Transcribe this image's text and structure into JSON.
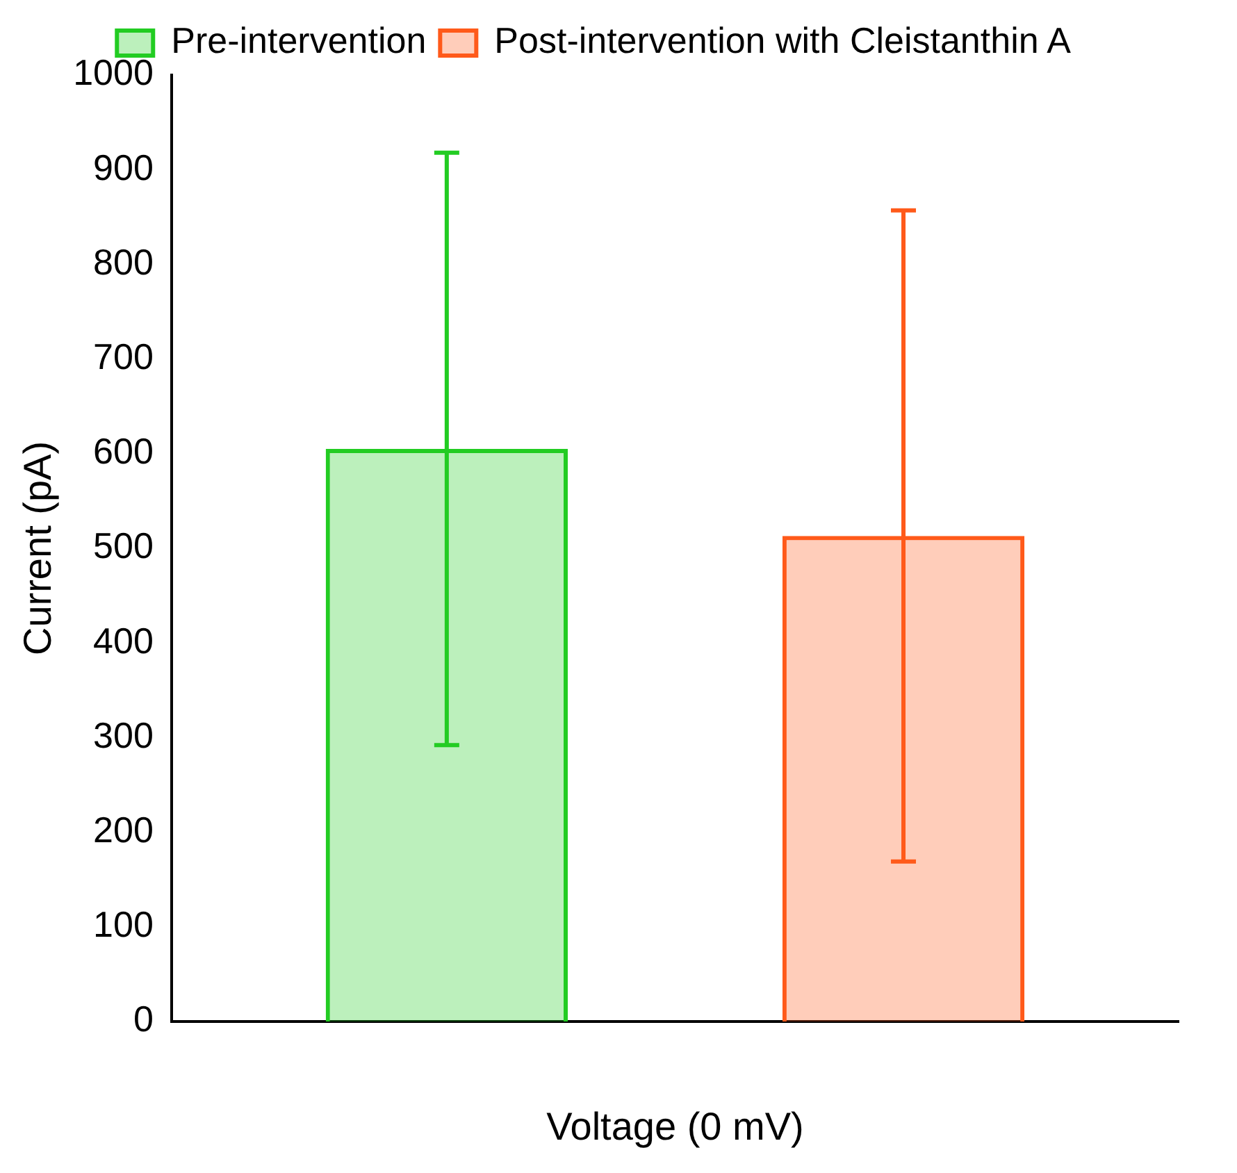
{
  "chart_data": {
    "type": "bar",
    "xlabel": "Voltage (0 mV)",
    "ylabel": "Current (pA)",
    "categories": [
      null
    ],
    "series": [
      {
        "name": "Pre-intervention",
        "color": "#22cc22",
        "values": [
          605
        ],
        "errors": [
          313
        ]
      },
      {
        "name": "Post-intervention with Cleistanthin A",
        "color": "#ff5a1a",
        "values": [
          513
        ],
        "errors": [
          344
        ]
      }
    ],
    "ylim": [
      0,
      1000
    ],
    "yticks": [
      0,
      100,
      200,
      300,
      400,
      500,
      600,
      700,
      800,
      900,
      1000
    ],
    "grid": false,
    "legend": "top"
  }
}
